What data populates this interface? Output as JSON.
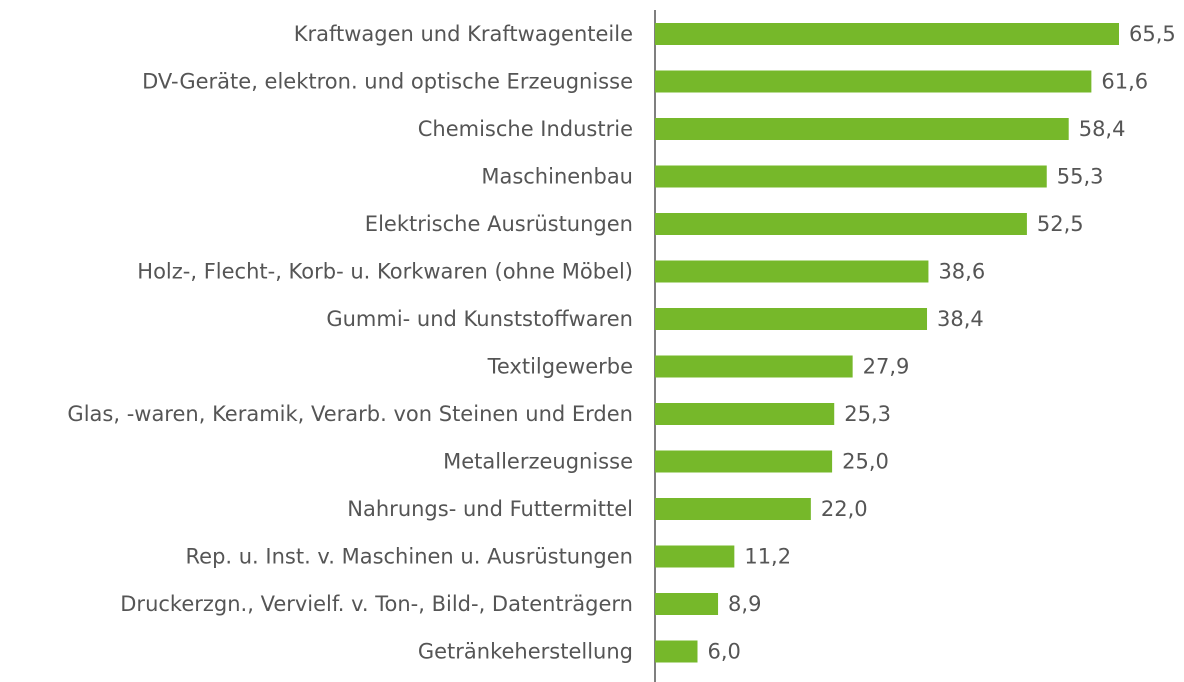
{
  "chart_data": {
    "type": "bar",
    "orientation": "horizontal",
    "color": "#76b82a",
    "categories": [
      "Kraftwagen und Kraftwagenteile",
      "DV-Geräte, elektron. und optische Erzeugnisse",
      "Chemische Industrie",
      "Maschinenbau",
      "Elektrische Ausrüstungen",
      "Holz-, Flecht-, Korb- u. Korkwaren (ohne Möbel)",
      "Gummi- und Kunststoffwaren",
      "Textilgewerbe",
      "Glas, -waren, Keramik, Verarb. von Steinen und Erden",
      "Metallerzeugnisse",
      "Nahrungs- und Futtermittel",
      "Rep. u. Inst. v. Maschinen u. Ausrüstungen",
      "Druckerzgn., Vervielf. v. Ton-, Bild-, Datenträgern",
      "Getränkeherstellung"
    ],
    "values": [
      65.5,
      61.6,
      58.4,
      55.3,
      52.5,
      38.6,
      38.4,
      27.9,
      25.3,
      25.0,
      22.0,
      11.2,
      8.9,
      6.0
    ],
    "value_labels": [
      "65,5",
      "61,6",
      "58,4",
      "55,3",
      "52,5",
      "38,6",
      "38,4",
      "27,9",
      "25,3",
      "25,0",
      "22,0",
      "11,2",
      "8,9",
      "6,0"
    ]
  }
}
